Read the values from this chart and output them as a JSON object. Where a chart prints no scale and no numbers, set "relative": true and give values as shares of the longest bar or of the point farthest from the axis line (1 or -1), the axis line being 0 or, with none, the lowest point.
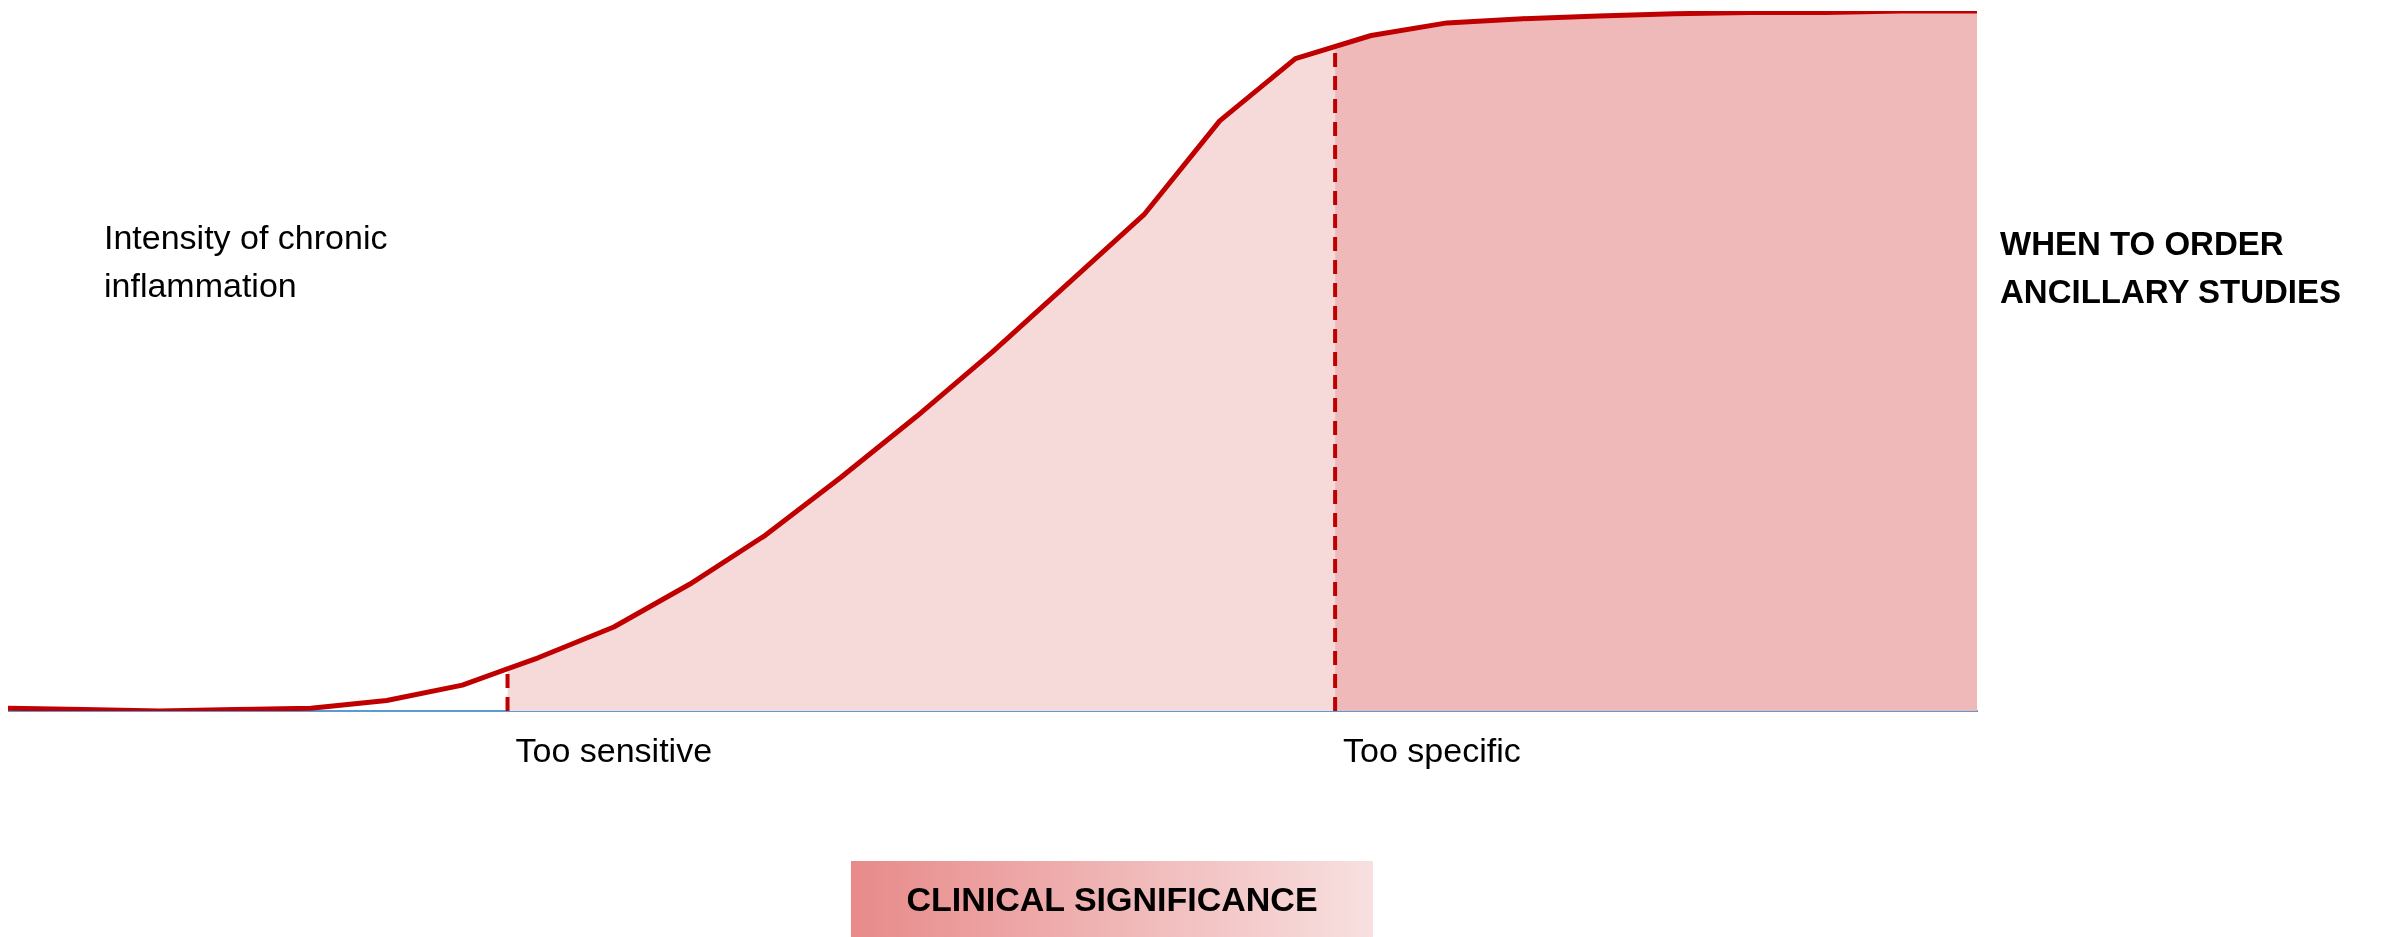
{
  "chart_data": {
    "type": "line",
    "relative": true,
    "title": "WHEN TO ORDER ANCILLARY STUDIES",
    "ylabel": "Intensity of chronic inflammation",
    "xlabel": "CLINICAL SIGNIFICANCE",
    "categories": [
      null,
      null,
      null,
      null,
      null,
      null,
      null,
      null,
      null,
      null,
      null,
      null,
      null,
      null,
      null,
      null,
      null,
      null,
      null,
      null,
      null,
      null,
      null,
      null,
      null,
      null,
      null
    ],
    "tick_labels": false,
    "grid": false,
    "legend": false,
    "marker": "none",
    "line_style": "solid",
    "series": [
      {
        "color": "#c00000",
        "values": [
          0.004,
          0.002,
          0,
          0.002,
          0.004,
          0.015,
          0.037,
          0.076,
          0.12,
          0.181,
          0.251,
          0.334,
          0.421,
          0.513,
          0.611,
          0.709,
          0.843,
          0.932,
          0.965,
          0.983,
          0.989,
          0.993,
          0.996,
          0.998,
          0.998,
          1,
          1
        ]
      }
    ],
    "annotations": [
      "Too sensitive",
      "Too specific"
    ]
  }
}
